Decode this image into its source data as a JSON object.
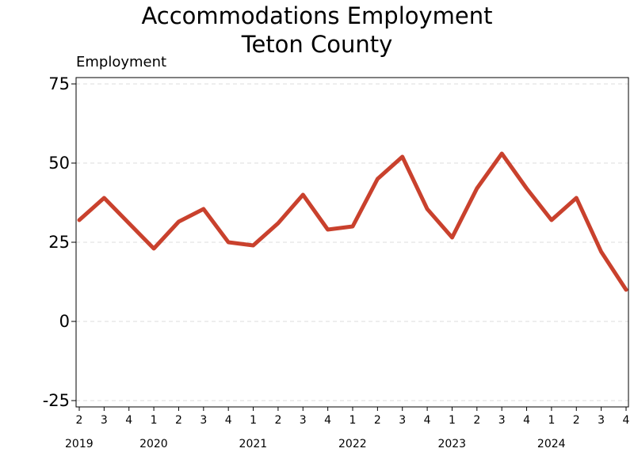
{
  "chart_data": {
    "type": "line",
    "title_line1": "Accommodations Employment",
    "title_line2": "Teton County",
    "ylabel": "Employment",
    "xlabel": "",
    "ylim": [
      -27,
      77
    ],
    "yticks": [
      -25,
      0,
      25,
      50,
      75
    ],
    "grid": "horizontal-dashed",
    "line_color": "#c9412d",
    "x": [
      "2",
      "3",
      "4",
      "1",
      "2",
      "3",
      "4",
      "1",
      "2",
      "3",
      "4",
      "1",
      "2",
      "3",
      "4",
      "1",
      "2",
      "3",
      "4",
      "1",
      "2",
      "3",
      "4"
    ],
    "years": [
      {
        "label": "2019",
        "index": 0
      },
      {
        "label": "2020",
        "index": 3
      },
      {
        "label": "2021",
        "index": 7
      },
      {
        "label": "2022",
        "index": 11
      },
      {
        "label": "2023",
        "index": 15
      },
      {
        "label": "2024",
        "index": 19
      }
    ],
    "series": [
      {
        "values": [
          32,
          39,
          31,
          23,
          31.5,
          35.5,
          25,
          24,
          31,
          40,
          29,
          30,
          45,
          52,
          35.5,
          26.5,
          42,
          53,
          42,
          32,
          39,
          22,
          10
        ]
      }
    ]
  }
}
